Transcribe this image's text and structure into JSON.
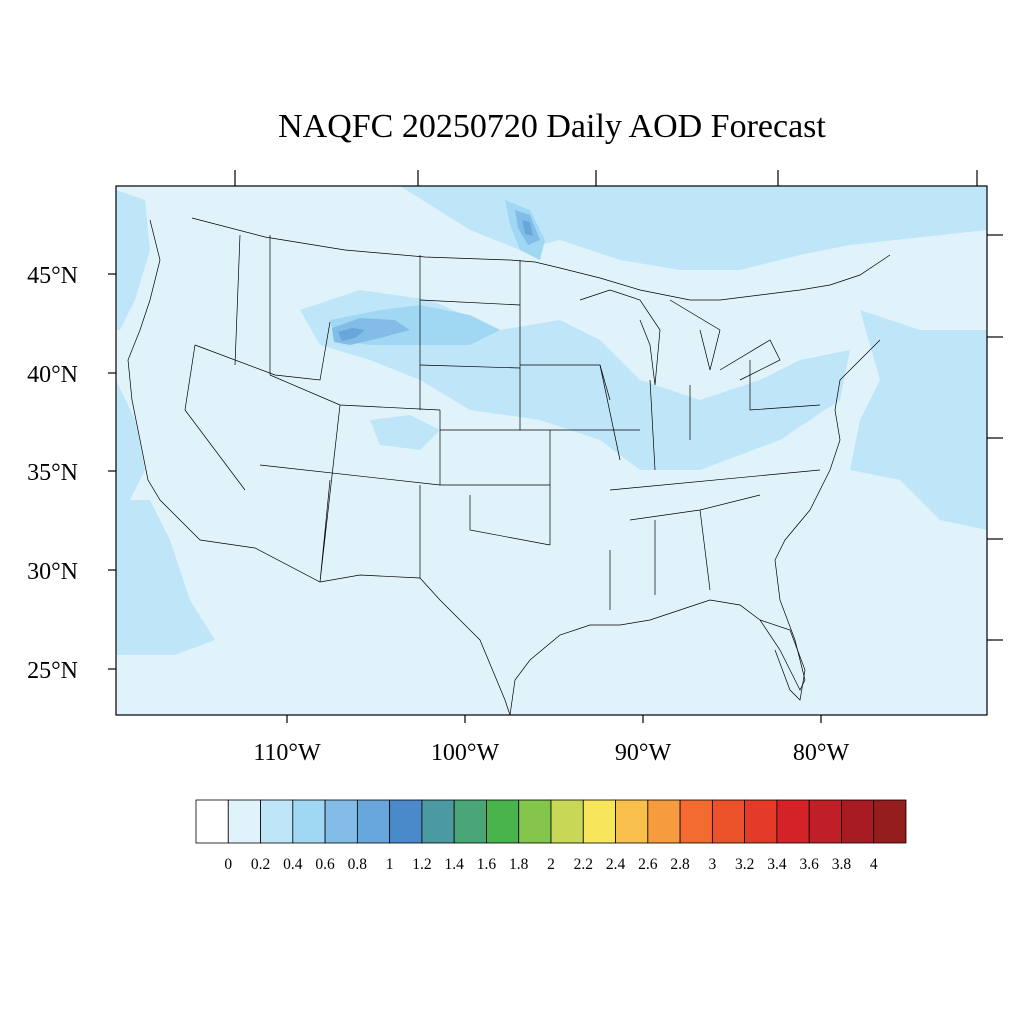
{
  "title": "NAQFC 20250720 Daily AOD Forecast",
  "map": {
    "variable": "AOD",
    "lat_labels": [
      "45°N",
      "40°N",
      "35°N",
      "30°N",
      "25°N"
    ],
    "lon_labels": [
      "110°W",
      "100°W",
      "90°W",
      "80°W"
    ],
    "background_color": "#e0f3fb",
    "outline_color": "#000000"
  },
  "colorbar": {
    "labels": [
      "0",
      "0.2",
      "0.4",
      "0.6",
      "0.8",
      "1",
      "1.2",
      "1.4",
      "1.6",
      "1.8",
      "2",
      "2.2",
      "2.4",
      "2.6",
      "2.8",
      "3",
      "3.2",
      "3.4",
      "3.6",
      "3.8",
      "4"
    ],
    "colors": [
      "#ffffff",
      "#e0f3fb",
      "#bfe6f8",
      "#a0d8f3",
      "#81bde7",
      "#67a7db",
      "#4a8acb",
      "#4b9aa1",
      "#4aa676",
      "#4ab44c",
      "#84c54c",
      "#c6d856",
      "#f8e65a",
      "#f8c04b",
      "#f79b3f",
      "#f36b2f",
      "#ec522a",
      "#e33b27",
      "#d42228",
      "#c11f27",
      "#a91b23",
      "#951d1e"
    ]
  }
}
